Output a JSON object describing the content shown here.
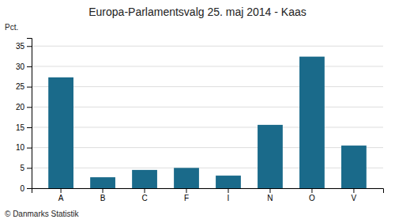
{
  "chart_data": {
    "type": "bar",
    "title": "Europa-Parlamentsvalg 25. maj 2014 - Kaas",
    "categories": [
      "A",
      "B",
      "C",
      "F",
      "I",
      "N",
      "O",
      "V"
    ],
    "values": [
      27.3,
      2.7,
      4.5,
      5.0,
      3.1,
      15.6,
      32.4,
      10.5
    ],
    "color": "#1a6a8a",
    "ylabel": "Pct.",
    "footer": "© Danmarks Statistik",
    "ylim": [
      0,
      37
    ],
    "yticks": [
      0,
      5,
      10,
      15,
      20,
      25,
      30,
      35
    ],
    "grid": true
  }
}
